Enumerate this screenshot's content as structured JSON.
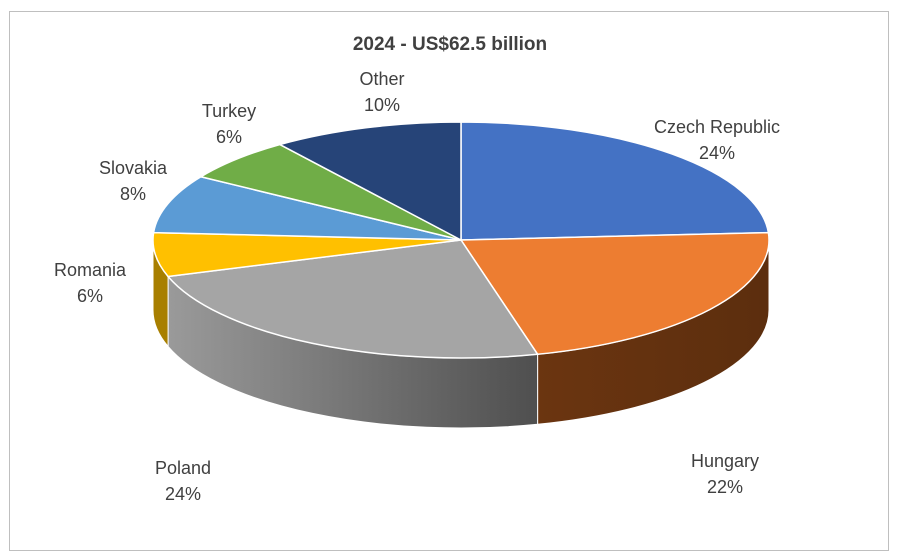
{
  "chart_data": {
    "type": "pie",
    "style": "3d",
    "title": "2024 - US$62.5 billion",
    "slices": [
      {
        "label": "Czech Republic",
        "percent_label": "24%",
        "value": 24,
        "color": "#4472c4",
        "side_color": "#2e4f8a"
      },
      {
        "label": "Hungary",
        "percent_label": "22%",
        "value": 22,
        "color": "#ed7d31",
        "side_color": "#7a3f14"
      },
      {
        "label": "Poland",
        "percent_label": "24%",
        "value": 24,
        "color": "#a5a5a5",
        "side_color": "#6b6b6b"
      },
      {
        "label": "Romania",
        "percent_label": "6%",
        "value": 6,
        "color": "#ffc000",
        "side_color": "#a87f00"
      },
      {
        "label": "Slovakia",
        "percent_label": "8%",
        "value": 8,
        "color": "#5b9bd5",
        "side_color": "#3a6a99"
      },
      {
        "label": "Turkey",
        "percent_label": "6%",
        "value": 6,
        "color": "#70ad47",
        "side_color": "#4a7a2d"
      },
      {
        "label": "Other",
        "percent_label": "10%",
        "value": 10,
        "color": "#264478",
        "side_color": "#16294a"
      }
    ]
  }
}
